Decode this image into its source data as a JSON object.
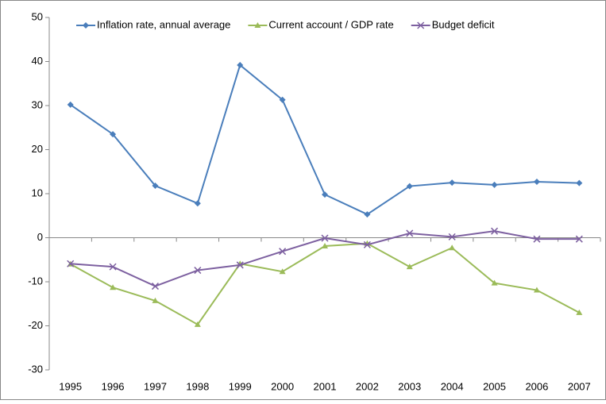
{
  "chart_data": {
    "type": "line",
    "categories": [
      "1995",
      "1996",
      "1997",
      "1998",
      "1999",
      "2000",
      "2001",
      "2002",
      "2003",
      "2004",
      "2005",
      "2006",
      "2007"
    ],
    "series": [
      {
        "name": "Inflation rate, annual average",
        "color": "#4a7ebb",
        "marker": "diamond",
        "values": [
          30.2,
          23.5,
          11.8,
          7.8,
          39.2,
          31.3,
          9.8,
          5.3,
          11.7,
          12.5,
          12.0,
          12.7,
          12.4
        ]
      },
      {
        "name": "Current account / GDP rate",
        "color": "#9bbb59",
        "marker": "triangle",
        "values": [
          -6.0,
          -11.3,
          -14.3,
          -19.7,
          -5.9,
          -7.7,
          -1.9,
          -1.3,
          -6.6,
          -2.3,
          -10.3,
          -11.9,
          -17.0
        ]
      },
      {
        "name": "Budget deficit",
        "color": "#7d60a0",
        "marker": "x",
        "values": [
          -5.9,
          -6.6,
          -11.0,
          -7.4,
          -6.2,
          -3.1,
          -0.1,
          -1.6,
          1.0,
          0.2,
          1.5,
          -0.3,
          -0.3
        ]
      }
    ],
    "ylim": [
      -30,
      50
    ],
    "yticks": [
      -30,
      -20,
      -10,
      0,
      10,
      20,
      30,
      40,
      50
    ],
    "grid": false,
    "legend": "top"
  }
}
